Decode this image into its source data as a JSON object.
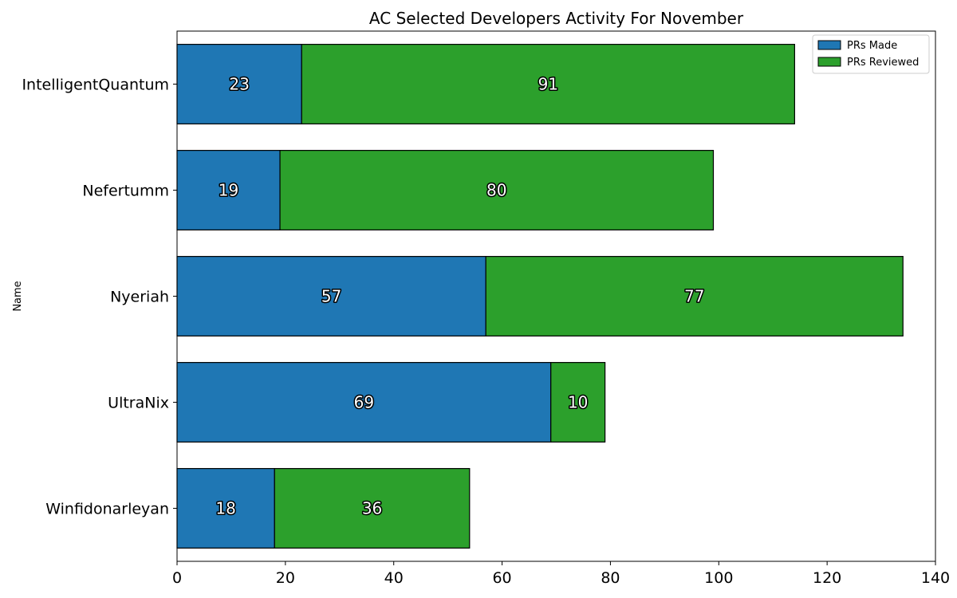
{
  "chart_data": {
    "type": "bar",
    "orientation": "horizontal",
    "stacked": true,
    "title": "AC Selected Developers Activity For November",
    "xlabel": "",
    "ylabel": "Name",
    "categories": [
      "IntelligentQuantum",
      "Nefertumm",
      "Nyeriah",
      "UltraNix",
      "Winfidonarleyan"
    ],
    "series": [
      {
        "name": "PRs Made",
        "values": [
          23,
          19,
          57,
          69,
          18
        ],
        "color": "#1f77b4"
      },
      {
        "name": "PRs Reviewed",
        "values": [
          91,
          80,
          77,
          10,
          36
        ],
        "color": "#2ca02c"
      }
    ],
    "xlim": [
      0,
      140
    ],
    "xticks": [
      0,
      20,
      40,
      60,
      80,
      100,
      120,
      140
    ],
    "grid": false,
    "legend_position": "top-right"
  }
}
